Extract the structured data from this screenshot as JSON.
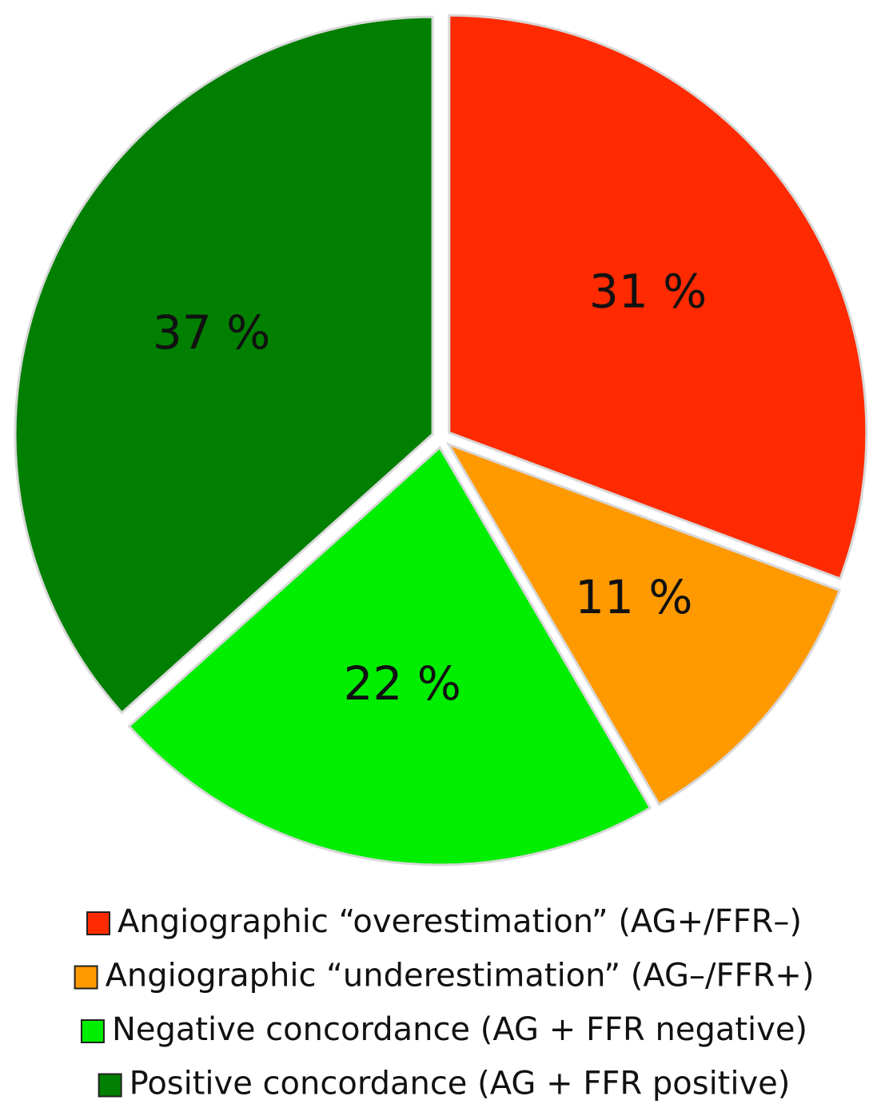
{
  "chart_data": {
    "type": "pie",
    "categories": [
      "Angiographic “overestimation” (AG+/FFR–)",
      "Angiographic “underestimation” (AG–/FFR+)",
      "Negative concordance (AG + FFR negative)",
      "Positive concordance (AG + FFR positive)"
    ],
    "values": [
      31,
      11,
      22,
      37
    ],
    "value_labels": [
      "31 %",
      "11 %",
      "22 %",
      "37 %"
    ],
    "colors": [
      "#ff2a00",
      "#ff9900",
      "#00ee00",
      "#007f00"
    ],
    "legend": "bottom"
  }
}
